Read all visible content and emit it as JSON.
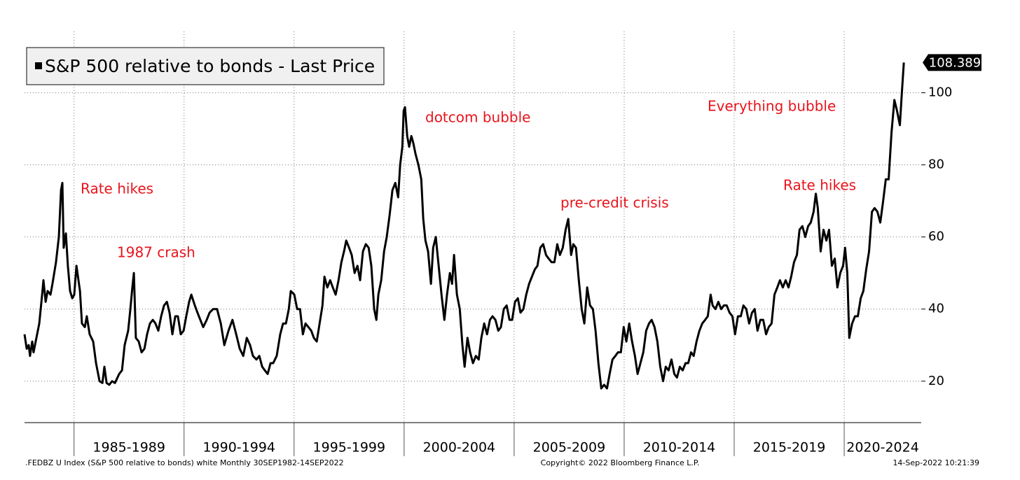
{
  "chart_data": {
    "type": "line",
    "x": [
      1982.75,
      1982.85,
      1982.94,
      1983.0,
      1983.1,
      1983.16,
      1983.29,
      1983.42,
      1983.55,
      1983.61,
      1983.71,
      1983.8,
      1983.93,
      1984.02,
      1984.18,
      1984.31,
      1984.41,
      1984.47,
      1984.53,
      1984.63,
      1984.72,
      1984.82,
      1984.92,
      1985.01,
      1985.11,
      1985.27,
      1985.36,
      1985.49,
      1985.58,
      1985.71,
      1985.87,
      1986.0,
      1986.16,
      1986.29,
      1986.38,
      1986.48,
      1986.6,
      1986.73,
      1986.86,
      1987.05,
      1987.18,
      1987.3,
      1987.46,
      1987.56,
      1987.65,
      1987.72,
      1987.81,
      1987.94,
      1988.07,
      1988.2,
      1988.32,
      1988.45,
      1988.58,
      1988.7,
      1988.83,
      1988.96,
      1989.09,
      1989.22,
      1989.34,
      1989.47,
      1989.6,
      1989.72,
      1989.85,
      1989.98,
      1990.1,
      1990.23,
      1990.33,
      1990.49,
      1990.61,
      1990.74,
      1990.87,
      1991.03,
      1991.16,
      1991.32,
      1991.5,
      1991.67,
      1991.83,
      1992.02,
      1992.2,
      1992.37,
      1992.53,
      1992.69,
      1992.85,
      1993.0,
      1993.13,
      1993.29,
      1993.42,
      1993.55,
      1993.67,
      1993.8,
      1993.93,
      1994.05,
      1994.21,
      1994.37,
      1994.5,
      1994.63,
      1994.76,
      1994.85,
      1995.01,
      1995.14,
      1995.27,
      1995.4,
      1995.52,
      1995.65,
      1995.78,
      1995.9,
      1996.03,
      1996.16,
      1996.29,
      1996.38,
      1996.51,
      1996.64,
      1996.76,
      1996.89,
      1997.02,
      1997.15,
      1997.27,
      1997.37,
      1997.5,
      1997.62,
      1997.75,
      1997.88,
      1998.0,
      1998.13,
      1998.26,
      1998.39,
      1998.51,
      1998.64,
      1998.74,
      1998.83,
      1998.96,
      1999.09,
      1999.21,
      1999.34,
      1999.47,
      1999.6,
      1999.73,
      1999.82,
      1999.92,
      1999.98,
      2000.04,
      2000.14,
      2000.23,
      2000.33,
      2000.42,
      2000.52,
      2000.65,
      2000.78,
      2000.87,
      2000.97,
      2001.09,
      2001.22,
      2001.32,
      2001.44,
      2001.57,
      2001.7,
      2001.83,
      2001.95,
      2002.08,
      2002.18,
      2002.27,
      2002.4,
      2002.53,
      2002.65,
      2002.75,
      2002.88,
      2003.0,
      2003.13,
      2003.26,
      2003.39,
      2003.51,
      2003.64,
      2003.77,
      2003.9,
      2004.02,
      2004.15,
      2004.28,
      2004.4,
      2004.53,
      2004.66,
      2004.79,
      2004.91,
      2005.04,
      2005.17,
      2005.29,
      2005.42,
      2005.55,
      2005.68,
      2005.81,
      2005.94,
      2006.06,
      2006.19,
      2006.32,
      2006.45,
      2006.57,
      2006.7,
      2006.83,
      2006.96,
      2007.08,
      2007.21,
      2007.34,
      2007.46,
      2007.59,
      2007.69,
      2007.81,
      2007.94,
      2008.07,
      2008.19,
      2008.32,
      2008.45,
      2008.58,
      2008.7,
      2008.83,
      2008.96,
      2009.09,
      2009.22,
      2009.34,
      2009.47,
      2009.6,
      2009.72,
      2009.85,
      2009.98,
      2010.1,
      2010.23,
      2010.36,
      2010.49,
      2010.61,
      2010.74,
      2010.87,
      2011.0,
      2011.13,
      2011.25,
      2011.38,
      2011.51,
      2011.64,
      2011.77,
      2011.89,
      2012.02,
      2012.15,
      2012.28,
      2012.4,
      2012.53,
      2012.66,
      2012.79,
      2012.91,
      2013.04,
      2013.16,
      2013.29,
      2013.42,
      2013.55,
      2013.68,
      2013.8,
      2013.93,
      2014.02,
      2014.15,
      2014.28,
      2014.41,
      2014.53,
      2014.66,
      2014.79,
      2014.92,
      2015.04,
      2015.17,
      2015.3,
      2015.42,
      2015.55,
      2015.68,
      2015.81,
      2015.93,
      2016.06,
      2016.19,
      2016.32,
      2016.45,
      2016.57,
      2016.7,
      2016.83,
      2016.96,
      2017.08,
      2017.21,
      2017.34,
      2017.47,
      2017.59,
      2017.72,
      2017.85,
      2017.97,
      2018.1,
      2018.23,
      2018.36,
      2018.48,
      2018.61,
      2018.71,
      2018.8,
      2018.93,
      2019.06,
      2019.19,
      2019.31,
      2019.44,
      2019.57,
      2019.69,
      2019.82,
      2019.95,
      2020.04,
      2020.14,
      2020.23,
      2020.36,
      2020.49,
      2020.62,
      2020.75,
      2020.87,
      2021.0,
      2021.13,
      2021.26,
      2021.38,
      2021.51,
      2021.64,
      2021.77,
      2021.89,
      2022.02,
      2022.15,
      2022.28,
      2022.4,
      2022.53,
      2022.62,
      2022.71
    ],
    "series": [
      {
        "name": "S&P 500 relative to bonds - Last Price",
        "color": "#000000",
        "values": [
          33,
          29,
          30,
          27,
          31,
          28,
          32,
          36,
          44,
          48,
          42,
          45,
          44,
          47,
          53,
          60,
          73,
          75,
          57,
          61,
          52,
          45,
          43,
          44,
          52,
          45,
          36,
          35,
          38,
          33,
          31,
          25,
          20,
          19.5,
          24,
          19.5,
          19,
          20,
          19.5,
          22,
          23,
          30,
          34,
          40,
          46,
          50,
          32,
          31,
          28,
          29,
          33,
          36,
          37,
          36,
          34,
          38,
          41,
          42,
          39,
          33,
          38,
          38,
          33,
          34,
          38,
          42,
          44,
          41,
          39,
          37,
          35,
          37,
          39,
          40,
          40,
          36,
          30,
          34,
          37,
          33,
          29,
          27,
          32,
          30,
          27,
          26,
          27,
          24,
          23,
          22,
          25,
          25,
          27,
          33,
          36,
          36,
          40,
          45,
          44,
          40,
          40,
          33,
          36,
          35,
          34,
          32,
          31,
          36,
          41,
          49,
          46,
          48,
          46,
          44,
          48,
          53,
          56,
          59,
          57,
          55,
          50,
          52,
          48,
          56,
          58,
          57,
          52,
          40,
          37,
          44,
          48,
          56,
          60,
          66,
          73,
          75,
          71,
          80,
          85,
          95,
          96,
          88,
          85,
          88,
          86,
          83,
          80,
          76,
          65,
          59,
          56,
          47,
          57,
          60,
          52,
          44,
          37,
          44,
          50,
          47,
          55,
          44,
          40,
          30,
          24,
          32,
          28,
          25,
          27,
          26,
          32,
          36,
          33,
          37,
          38,
          37,
          34,
          35,
          40,
          41,
          37,
          37,
          42,
          43,
          39,
          40,
          44,
          47,
          49,
          51,
          52,
          57,
          58,
          55,
          54,
          53,
          53,
          58,
          55,
          57,
          62,
          65,
          55,
          58,
          57,
          48,
          40,
          36,
          46,
          41,
          40,
          34,
          25,
          18,
          19,
          18,
          22,
          26,
          27,
          28,
          28,
          35,
          31,
          36,
          31,
          27,
          22,
          25,
          28,
          34,
          36,
          37,
          35,
          31,
          24,
          20,
          24,
          23,
          26,
          22,
          21,
          24,
          23,
          25,
          25,
          28,
          27,
          31,
          34,
          36,
          37,
          38,
          44,
          41,
          40,
          42,
          40,
          41,
          41,
          39,
          38,
          33,
          38,
          38,
          41,
          40,
          36,
          39,
          40,
          34,
          37,
          37,
          33,
          35,
          36,
          44,
          46,
          48,
          46,
          48,
          46,
          49,
          53,
          55,
          62,
          63,
          60,
          63,
          64,
          67,
          72,
          68,
          56,
          62,
          59,
          62,
          52,
          54,
          46,
          50,
          52,
          57,
          50,
          32,
          36,
          38,
          38,
          43,
          45,
          51,
          56,
          67,
          68,
          67,
          64,
          70,
          76,
          76,
          89,
          98,
          95,
          91,
          100,
          108.389
        ]
      }
    ],
    "xlim": [
      1982.75,
      2023.5
    ],
    "xticks": [
      {
        "value": 1985,
        "label": "1985-1989"
      },
      {
        "value": 1990,
        "label": "1990-1994"
      },
      {
        "value": 1995,
        "label": "1995-1999"
      },
      {
        "value": 2000,
        "label": "2000-2004"
      },
      {
        "value": 2005,
        "label": "2005-2009"
      },
      {
        "value": 2010,
        "label": "2010-2014"
      },
      {
        "value": 2015,
        "label": "2015-2019"
      },
      {
        "value": 2020,
        "label": "2020-2024"
      }
    ],
    "ylim": [
      8.5,
      117
    ],
    "yticks": [
      20,
      40,
      60,
      80,
      100
    ],
    "grid": true,
    "legend": "top-left",
    "annotations": [
      "Rate hikes",
      "1987 crash",
      "dotcom bubble",
      "pre-credit crisis",
      "Everything bubble",
      "Rate hikes"
    ],
    "annotation_color": "#e8141c",
    "footer_left": ".FEDBZ U Index (S&P 500 relative to bonds) white  Monthly 30SEP1982-14SEP2022",
    "footer_center": "Copyright© 2022 Bloomberg Finance L.P.",
    "footer_right": "14-Sep-2022 10:21:39"
  }
}
